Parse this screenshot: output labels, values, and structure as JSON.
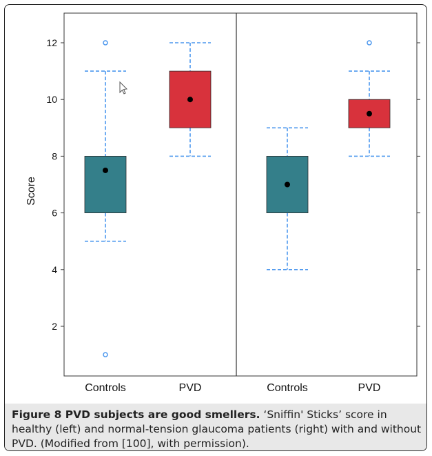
{
  "chart_data": {
    "type": "box",
    "ylabel": "Score",
    "ylim": [
      0.3,
      12.7
    ],
    "yticks": [
      2,
      4,
      6,
      8,
      10,
      12
    ],
    "ytick_labels": [
      "2",
      "4",
      "6",
      "8",
      "10",
      "12"
    ],
    "panels": [
      {
        "boxes": [
          {
            "category": "Controls",
            "whisker_low": 5,
            "q1": 6,
            "q3": 8,
            "whisker_high": 11,
            "mean": 7.5,
            "outliers": [
              12,
              1
            ],
            "color": "#347f8a"
          },
          {
            "category": "PVD",
            "whisker_low": 8,
            "q1": 9,
            "q3": 11,
            "whisker_high": 12,
            "mean": 10,
            "outliers": [],
            "color": "#d8323c"
          }
        ]
      },
      {
        "boxes": [
          {
            "category": "Controls",
            "whisker_low": 4,
            "q1": 6,
            "q3": 8,
            "whisker_high": 9,
            "mean": 7,
            "outliers": [],
            "color": "#347f8a"
          },
          {
            "category": "PVD",
            "whisker_low": 8,
            "q1": 9,
            "q3": 10,
            "whisker_high": 11,
            "mean": 9.5,
            "outliers": [
              12
            ],
            "color": "#d8323c"
          }
        ]
      }
    ],
    "colors": {
      "whisker": "#4b97ee",
      "outlier": "#4b97ee",
      "mean": "#000000"
    }
  },
  "caption": {
    "title": "Figure 8 PVD subjects are good smellers.",
    "text": " ‘Sniffin' Sticks’ score in healthy (left) and normal-tension glaucoma patients (right) with and without PVD. (Modified from [100], with permission)."
  }
}
